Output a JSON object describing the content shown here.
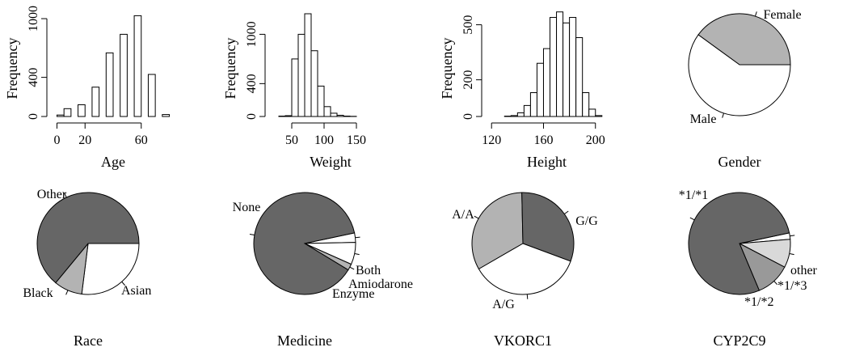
{
  "chart_data": [
    {
      "type": "bar",
      "variant": "histogram",
      "xlabel": "Age",
      "ylabel": "Frequency",
      "bin_edges": [
        0,
        5,
        10,
        15,
        20,
        25,
        30,
        35,
        40,
        45,
        50,
        55,
        60,
        65,
        70,
        75,
        80
      ],
      "values": [
        15,
        80,
        0,
        120,
        0,
        300,
        0,
        650,
        0,
        840,
        0,
        1030,
        0,
        430,
        0,
        20
      ],
      "xlim": [
        -2,
        82
      ],
      "ylim": [
        0,
        1050
      ],
      "xticks": [
        0,
        20,
        60
      ],
      "xtick_labels": [
        "0",
        "20",
        "60"
      ],
      "yticks": [
        0,
        400,
        1000
      ],
      "ytick_labels": [
        "0",
        "400",
        "1000"
      ]
    },
    {
      "type": "bar",
      "variant": "histogram",
      "xlabel": "Weight",
      "ylabel": "Frequency",
      "bin_edges": [
        20,
        30,
        40,
        50,
        60,
        70,
        80,
        90,
        100,
        110,
        120,
        130,
        140,
        150,
        160
      ],
      "values": [
        0,
        5,
        10,
        700,
        1000,
        1250,
        800,
        370,
        120,
        40,
        15,
        5,
        2,
        0
      ],
      "xlim": [
        20,
        200
      ],
      "ylim": [
        0,
        1250
      ],
      "xticks": [
        50,
        100,
        150
      ],
      "xtick_labels": [
        "50",
        "100",
        "150"
      ],
      "yticks": [
        0,
        400,
        1000
      ],
      "ytick_labels": [
        "0",
        "400",
        "1000"
      ]
    },
    {
      "type": "bar",
      "variant": "histogram",
      "xlabel": "Height",
      "ylabel": "Frequency",
      "bin_edges": [
        120,
        125,
        130,
        135,
        140,
        145,
        150,
        155,
        160,
        165,
        170,
        175,
        180,
        185,
        190,
        195,
        200,
        205
      ],
      "values": [
        0,
        0,
        2,
        5,
        20,
        60,
        130,
        290,
        370,
        540,
        570,
        510,
        540,
        430,
        130,
        40,
        5
      ],
      "xlim": [
        118,
        207
      ],
      "ylim": [
        0,
        560
      ],
      "xticks": [
        120,
        160,
        200
      ],
      "xtick_labels": [
        "120",
        "160",
        "200"
      ],
      "yticks": [
        0,
        200,
        500
      ],
      "ytick_labels": [
        "0",
        "200",
        "500"
      ]
    },
    {
      "type": "pie",
      "title": "Gender",
      "categories": [
        "Female",
        "Male"
      ],
      "values": [
        40,
        60
      ],
      "start_angle": 0,
      "direction": "counterclockwise",
      "colors": [
        "#b3b3b3",
        "#ffffff"
      ]
    },
    {
      "type": "pie",
      "title": "Race",
      "categories": [
        "Asian",
        "Black",
        "Other"
      ],
      "values": [
        27,
        9,
        64
      ],
      "start_angle": 0,
      "direction": "clockwise",
      "colors": [
        "#ffffff",
        "#b3b3b3",
        "#666666"
      ]
    },
    {
      "type": "pie",
      "title": "Medicine",
      "categories": [
        "Both",
        "Amiodarone",
        "Enzyme",
        "None"
      ],
      "values": [
        3,
        7,
        2,
        88
      ],
      "start_angle": -12,
      "direction": "clockwise",
      "colors": [
        "#ffffff",
        "#ffffff",
        "#b3b3b3",
        "#666666"
      ]
    },
    {
      "type": "pie",
      "title": "VKORC1",
      "categories": [
        "A/A",
        "G/G",
        "A/G"
      ],
      "values": [
        33,
        31,
        36
      ],
      "start_angle": 150,
      "direction": "clockwise",
      "colors": [
        "#b3b3b3",
        "#666666",
        "#ffffff"
      ]
    },
    {
      "type": "pie",
      "title": "CYP2C9",
      "categories": [
        "other",
        "*1/*3",
        "*1/*2",
        "*1/*1"
      ],
      "values": [
        2,
        9,
        11,
        78
      ],
      "start_angle": -12,
      "direction": "clockwise",
      "colors": [
        "#ffffff",
        "#d9d9d9",
        "#999999",
        "#666666"
      ]
    }
  ]
}
